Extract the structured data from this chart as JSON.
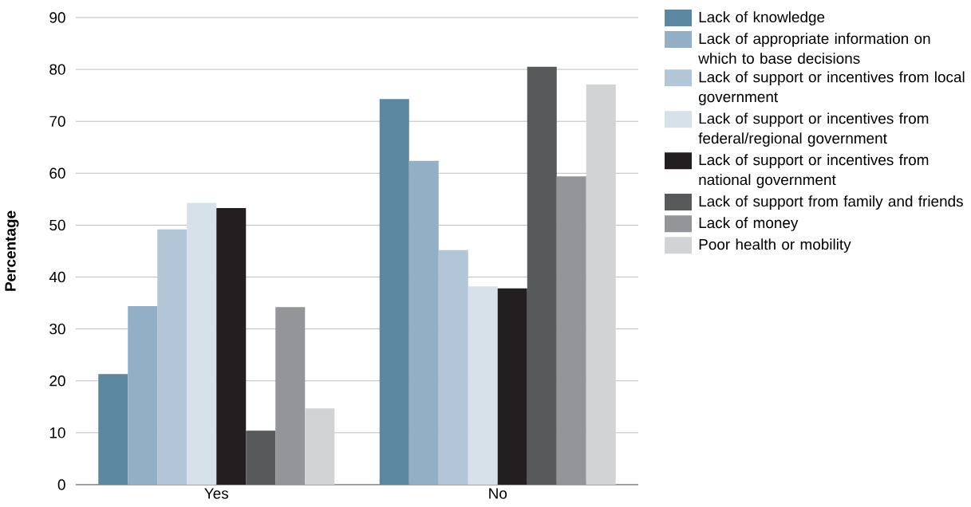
{
  "chart_data": {
    "type": "bar",
    "ylabel": "Percentage",
    "categories": [
      "Yes",
      "No"
    ],
    "series": [
      {
        "name": "Lack of knowledge",
        "color": "#5b87a0",
        "values": [
          21.3,
          74.3
        ]
      },
      {
        "name": "Lack of appropriate information on which to base decisions",
        "color": "#93afc5",
        "values": [
          34.4,
          62.4
        ]
      },
      {
        "name": "Lack of support or incentives from local government",
        "color": "#b3c6d7",
        "values": [
          49.2,
          45.2
        ]
      },
      {
        "name": "Lack of support or incentives from federal/regional government",
        "color": "#d7e1ea",
        "values": [
          54.3,
          38.2
        ]
      },
      {
        "name": "Lack of support or incentives from national government",
        "color": "#231f20",
        "values": [
          53.3,
          37.8
        ]
      },
      {
        "name": "Lack of support from family and friends",
        "color": "#58595b",
        "values": [
          10.4,
          80.5
        ]
      },
      {
        "name": "Lack of money",
        "color": "#939598",
        "values": [
          34.2,
          59.4
        ]
      },
      {
        "name": "Poor health or mobility",
        "color": "#d1d3d4",
        "values": [
          14.7,
          77.1
        ]
      }
    ],
    "ylim": [
      0,
      90
    ],
    "yticks": [
      0,
      10,
      20,
      30,
      40,
      50,
      60,
      70,
      80,
      90
    ],
    "grid": "y",
    "legend": "top right"
  }
}
